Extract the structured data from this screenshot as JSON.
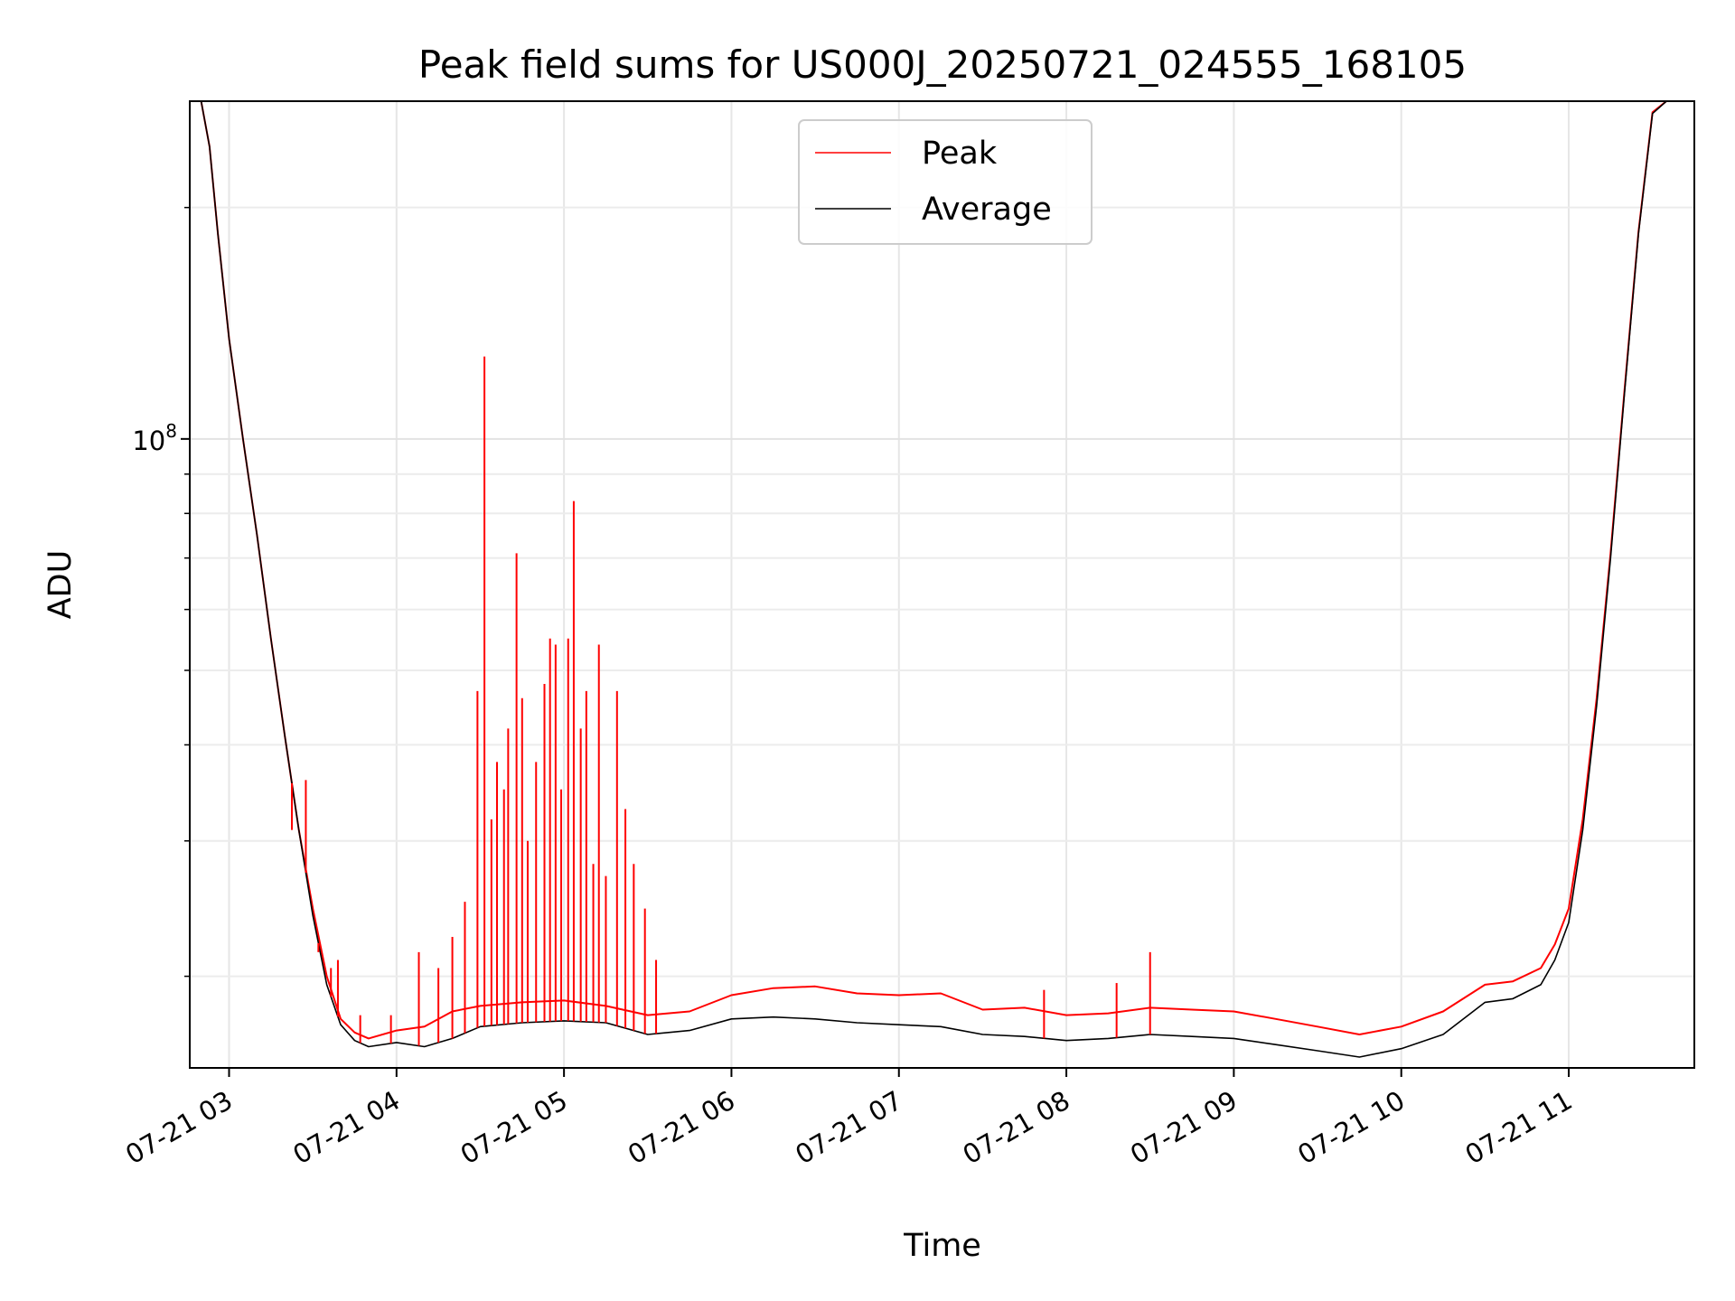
{
  "chart_data": {
    "type": "line",
    "title": "Peak field sums for US000J_20250721_024555_168105",
    "xlabel": "Time",
    "ylabel": "ADU",
    "y_scale": "log",
    "x_range": [
      "2025-07-21T02:45:55",
      "2025-07-21T11:45:00"
    ],
    "ylim": [
      15200000,
      275000000
    ],
    "x_ticks": [
      "07-21 03",
      "07-21 04",
      "07-21 05",
      "07-21 06",
      "07-21 07",
      "07-21 08",
      "07-21 09",
      "07-21 10",
      "07-21 11"
    ],
    "y_ticks": [
      {
        "value": 100000000,
        "label": "10^8"
      }
    ],
    "y_minor_ticks": [
      20000000,
      30000000,
      40000000,
      50000000,
      60000000,
      70000000,
      80000000,
      90000000,
      200000000
    ],
    "grid": true,
    "legend_position": "top-center",
    "series_colors": {
      "Peak": "#ff0000",
      "Average": "#000000"
    },
    "series": [
      {
        "name": "Average",
        "x": [
          "2025-07-21T02:46:00",
          "2025-07-21T02:50:00",
          "2025-07-21T02:53:00",
          "2025-07-21T02:56:00",
          "2025-07-21T03:00:00",
          "2025-07-21T03:05:00",
          "2025-07-21T03:10:00",
          "2025-07-21T03:15:00",
          "2025-07-21T03:20:00",
          "2025-07-21T03:25:00",
          "2025-07-21T03:30:00",
          "2025-07-21T03:35:00",
          "2025-07-21T03:40:00",
          "2025-07-21T03:45:00",
          "2025-07-21T03:50:00",
          "2025-07-21T04:00:00",
          "2025-07-21T04:10:00",
          "2025-07-21T04:20:00",
          "2025-07-21T04:30:00",
          "2025-07-21T04:45:00",
          "2025-07-21T05:00:00",
          "2025-07-21T05:15:00",
          "2025-07-21T05:30:00",
          "2025-07-21T05:45:00",
          "2025-07-21T06:00:00",
          "2025-07-21T06:15:00",
          "2025-07-21T06:30:00",
          "2025-07-21T06:45:00",
          "2025-07-21T07:00:00",
          "2025-07-21T07:15:00",
          "2025-07-21T07:30:00",
          "2025-07-21T07:45:00",
          "2025-07-21T08:00:00",
          "2025-07-21T08:15:00",
          "2025-07-21T08:30:00",
          "2025-07-21T08:45:00",
          "2025-07-21T09:00:00",
          "2025-07-21T09:15:00",
          "2025-07-21T09:30:00",
          "2025-07-21T09:45:00",
          "2025-07-21T10:00:00",
          "2025-07-21T10:15:00",
          "2025-07-21T10:30:00",
          "2025-07-21T10:40:00",
          "2025-07-21T10:50:00",
          "2025-07-21T10:55:00",
          "2025-07-21T11:00:00",
          "2025-07-21T11:05:00",
          "2025-07-21T11:10:00",
          "2025-07-21T11:15:00",
          "2025-07-21T11:20:00",
          "2025-07-21T11:25:00",
          "2025-07-21T11:30:00",
          "2025-07-21T11:35:00"
        ],
        "values": [
          275000000,
          275000000,
          240000000,
          185000000,
          135000000,
          100000000,
          75000000,
          55000000,
          41000000,
          31000000,
          24000000,
          19500000,
          17300000,
          16500000,
          16200000,
          16400000,
          16200000,
          16600000,
          17200000,
          17400000,
          17500000,
          17400000,
          16800000,
          17000000,
          17600000,
          17700000,
          17600000,
          17400000,
          17300000,
          17200000,
          16800000,
          16700000,
          16500000,
          16600000,
          16800000,
          16700000,
          16600000,
          16300000,
          16000000,
          15700000,
          16100000,
          16800000,
          18500000,
          18700000,
          19500000,
          21000000,
          23500000,
          31000000,
          45000000,
          70000000,
          115000000,
          185000000,
          265000000,
          275000000
        ]
      },
      {
        "name": "Peak",
        "x": [
          "2025-07-21T02:46:00",
          "2025-07-21T02:50:00",
          "2025-07-21T02:53:00",
          "2025-07-21T02:56:00",
          "2025-07-21T03:00:00",
          "2025-07-21T03:05:00",
          "2025-07-21T03:10:00",
          "2025-07-21T03:15:00",
          "2025-07-21T03:20:00",
          "2025-07-21T03:25:00",
          "2025-07-21T03:30:00",
          "2025-07-21T03:35:00",
          "2025-07-21T03:40:00",
          "2025-07-21T03:45:00",
          "2025-07-21T03:50:00",
          "2025-07-21T04:00:00",
          "2025-07-21T04:10:00",
          "2025-07-21T04:20:00",
          "2025-07-21T04:30:00",
          "2025-07-21T04:45:00",
          "2025-07-21T05:00:00",
          "2025-07-21T05:15:00",
          "2025-07-21T05:30:00",
          "2025-07-21T05:45:00",
          "2025-07-21T06:00:00",
          "2025-07-21T06:15:00",
          "2025-07-21T06:30:00",
          "2025-07-21T06:45:00",
          "2025-07-21T07:00:00",
          "2025-07-21T07:15:00",
          "2025-07-21T07:30:00",
          "2025-07-21T07:45:00",
          "2025-07-21T08:00:00",
          "2025-07-21T08:15:00",
          "2025-07-21T08:30:00",
          "2025-07-21T08:45:00",
          "2025-07-21T09:00:00",
          "2025-07-21T09:15:00",
          "2025-07-21T09:30:00",
          "2025-07-21T09:45:00",
          "2025-07-21T10:00:00",
          "2025-07-21T10:15:00",
          "2025-07-21T10:30:00",
          "2025-07-21T10:40:00",
          "2025-07-21T10:50:00",
          "2025-07-21T10:55:00",
          "2025-07-21T11:00:00",
          "2025-07-21T11:05:00",
          "2025-07-21T11:10:00",
          "2025-07-21T11:15:00",
          "2025-07-21T11:20:00",
          "2025-07-21T11:25:00",
          "2025-07-21T11:30:00",
          "2025-07-21T11:35:00"
        ],
        "values": [
          275000000,
          275000000,
          240000000,
          185000000,
          135000000,
          100000000,
          75000000,
          55000000,
          41000000,
          31000000,
          24500000,
          20000000,
          17600000,
          16900000,
          16600000,
          17000000,
          17200000,
          18000000,
          18300000,
          18500000,
          18600000,
          18300000,
          17800000,
          18000000,
          18900000,
          19300000,
          19400000,
          19000000,
          18900000,
          19000000,
          18100000,
          18200000,
          17800000,
          17900000,
          18200000,
          18100000,
          18000000,
          17600000,
          17200000,
          16800000,
          17200000,
          18000000,
          19500000,
          19700000,
          20500000,
          22000000,
          24500000,
          32000000,
          46000000,
          71000000,
          116000000,
          186000000,
          266000000,
          275000000
        ]
      }
    ],
    "peak_spikes": [
      {
        "x": "2025-07-21T03:22:30",
        "y": 31000000
      },
      {
        "x": "2025-07-21T03:27:30",
        "y": 36000000
      },
      {
        "x": "2025-07-21T03:32:00",
        "y": 21500000
      },
      {
        "x": "2025-07-21T03:36:30",
        "y": 20500000
      },
      {
        "x": "2025-07-21T03:39:00",
        "y": 21000000
      },
      {
        "x": "2025-07-21T03:47:00",
        "y": 17800000
      },
      {
        "x": "2025-07-21T03:58:00",
        "y": 17800000
      },
      {
        "x": "2025-07-21T04:08:00",
        "y": 21500000
      },
      {
        "x": "2025-07-21T04:15:00",
        "y": 20500000
      },
      {
        "x": "2025-07-21T04:20:00",
        "y": 22500000
      },
      {
        "x": "2025-07-21T04:24:30",
        "y": 25000000
      },
      {
        "x": "2025-07-21T04:29:00",
        "y": 47000000
      },
      {
        "x": "2025-07-21T04:31:30",
        "y": 128000000
      },
      {
        "x": "2025-07-21T04:34:00",
        "y": 32000000
      },
      {
        "x": "2025-07-21T04:36:00",
        "y": 38000000
      },
      {
        "x": "2025-07-21T04:38:30",
        "y": 35000000
      },
      {
        "x": "2025-07-21T04:40:00",
        "y": 42000000
      },
      {
        "x": "2025-07-21T04:43:00",
        "y": 71000000
      },
      {
        "x": "2025-07-21T04:45:00",
        "y": 46000000
      },
      {
        "x": "2025-07-21T04:47:00",
        "y": 30000000
      },
      {
        "x": "2025-07-21T04:50:00",
        "y": 38000000
      },
      {
        "x": "2025-07-21T04:53:00",
        "y": 48000000
      },
      {
        "x": "2025-07-21T04:55:00",
        "y": 55000000
      },
      {
        "x": "2025-07-21T04:57:00",
        "y": 54000000
      },
      {
        "x": "2025-07-21T04:59:00",
        "y": 35000000
      },
      {
        "x": "2025-07-21T05:01:30",
        "y": 55000000
      },
      {
        "x": "2025-07-21T05:03:30",
        "y": 83000000
      },
      {
        "x": "2025-07-21T05:06:00",
        "y": 42000000
      },
      {
        "x": "2025-07-21T05:08:00",
        "y": 47000000
      },
      {
        "x": "2025-07-21T05:10:30",
        "y": 28000000
      },
      {
        "x": "2025-07-21T05:12:30",
        "y": 54000000
      },
      {
        "x": "2025-07-21T05:15:00",
        "y": 27000000
      },
      {
        "x": "2025-07-21T05:19:00",
        "y": 47000000
      },
      {
        "x": "2025-07-21T05:22:00",
        "y": 33000000
      },
      {
        "x": "2025-07-21T05:25:00",
        "y": 28000000
      },
      {
        "x": "2025-07-21T05:29:00",
        "y": 24500000
      },
      {
        "x": "2025-07-21T05:33:00",
        "y": 21000000
      },
      {
        "x": "2025-07-21T07:52:00",
        "y": 19200000
      },
      {
        "x": "2025-07-21T08:18:00",
        "y": 19600000
      },
      {
        "x": "2025-07-21T08:30:00",
        "y": 21500000
      }
    ]
  }
}
